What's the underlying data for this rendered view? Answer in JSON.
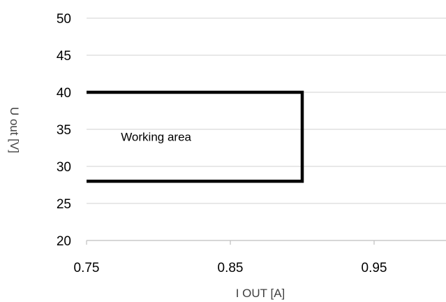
{
  "chart_data": {
    "type": "line",
    "title": "",
    "xlabel": "I OUT [A]",
    "ylabel": "U out [V]",
    "xlim": [
      0.75,
      1.0
    ],
    "ylim": [
      20,
      50
    ],
    "x_ticks": [
      0.75,
      0.85,
      0.95
    ],
    "x_tick_labels": [
      "0.75",
      "0.85",
      "0.95"
    ],
    "y_ticks": [
      20,
      25,
      30,
      35,
      40,
      45,
      50
    ],
    "y_tick_labels": [
      "20",
      "25",
      "30",
      "35",
      "40",
      "45",
      "50"
    ],
    "grid": "horizontal",
    "legend": "none",
    "series": [
      {
        "color": "#000000",
        "points": [
          {
            "x": 0.75,
            "y": 40
          },
          {
            "x": 0.9,
            "y": 40
          },
          {
            "x": 0.9,
            "y": 28
          },
          {
            "x": 0.75,
            "y": 28
          }
        ]
      }
    ],
    "annotations": [
      {
        "text": "Working area",
        "x": 0.77,
        "y": 34
      }
    ],
    "colors": {
      "gridline": "#d9d9d9",
      "axis": "#bfbfbf",
      "series": "#000000"
    }
  }
}
